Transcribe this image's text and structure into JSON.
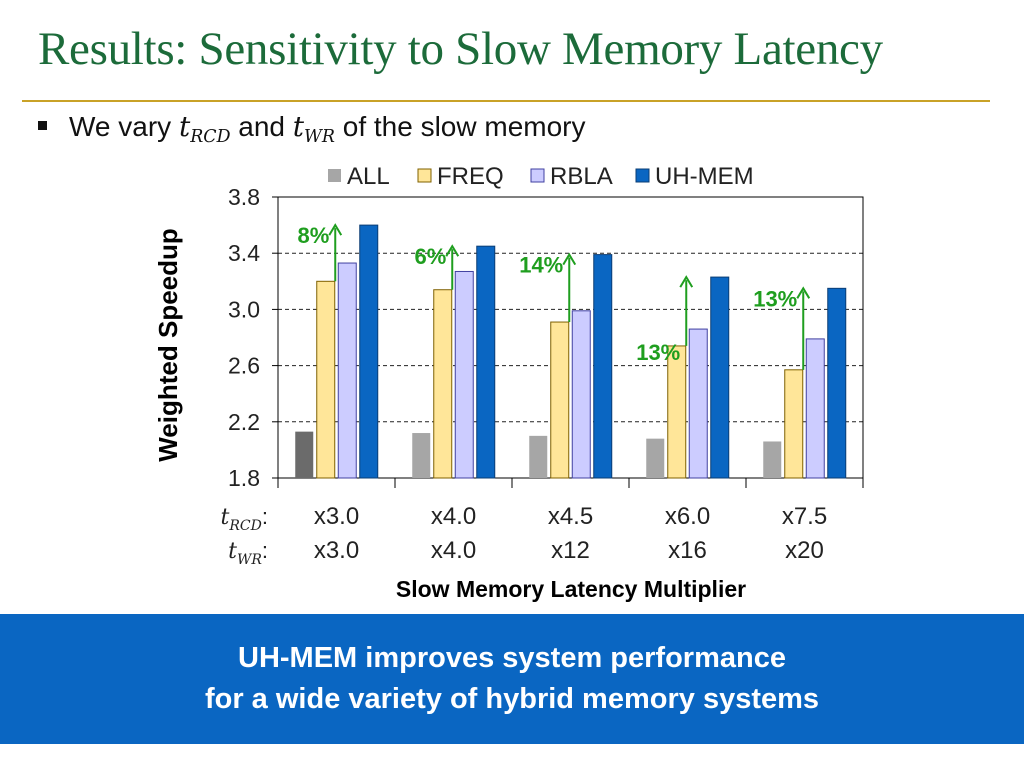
{
  "slide": {
    "title": "Results: Sensitivity to Slow Memory Latency",
    "bullet": {
      "prefix": "We vary ",
      "param1": {
        "base": "t",
        "sub": "RCD"
      },
      "middle": " and ",
      "param2": {
        "base": "t",
        "sub": "WR"
      },
      "suffix": " of the slow memory"
    },
    "banner": {
      "line1": "UH-MEM improves system performance",
      "line2": "for a wide variety of hybrid memory systems"
    }
  },
  "colors": {
    "title": "#1c6b3a",
    "rule": "#c9a227",
    "banner": "#0a66c2",
    "ALL": "#a6a6a6",
    "ALL_first": "#6b6b6b",
    "FREQ": "#ffe699",
    "RBLA": "#ccccff",
    "UH-MEM": "#0a66c2",
    "annotation": "#1f9e1f"
  },
  "chart_data": {
    "type": "bar",
    "categories": [
      "x3.0",
      "x4.0",
      "x4.5",
      "x6.0",
      "x7.5"
    ],
    "category_rows": [
      {
        "label_base": "t",
        "label_sub": "RCD",
        "values": [
          "x3.0",
          "x4.0",
          "x4.5",
          "x6.0",
          "x7.5"
        ]
      },
      {
        "label_base": "t",
        "label_sub": "WR",
        "values": [
          "x3.0",
          "x4.0",
          "x12",
          "x16",
          "x20"
        ]
      }
    ],
    "series": [
      {
        "name": "ALL",
        "values": [
          2.13,
          2.12,
          2.1,
          2.08,
          2.06
        ]
      },
      {
        "name": "FREQ",
        "values": [
          3.2,
          3.14,
          2.91,
          2.74,
          2.57
        ]
      },
      {
        "name": "RBLA",
        "values": [
          3.33,
          3.27,
          2.99,
          2.86,
          2.79
        ]
      },
      {
        "name": "UH-MEM",
        "values": [
          3.6,
          3.45,
          3.39,
          3.23,
          3.15
        ]
      }
    ],
    "annotations": [
      "8%",
      "6%",
      "14%",
      "13%",
      "13%"
    ],
    "ylabel": "Weighted Speedup",
    "xlabel": "Slow Memory Latency Multiplier",
    "ylim": [
      1.8,
      3.8
    ],
    "yticks": [
      "1.8",
      "2.2",
      "2.6",
      "3.0",
      "3.4",
      "3.8"
    ],
    "grid": true,
    "legend_position": "top"
  }
}
